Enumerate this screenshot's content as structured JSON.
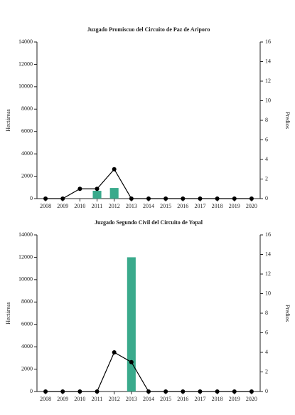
{
  "chart_data": [
    {
      "type": "bar",
      "title": "Juzgado Promiscuo del Circuito de Paz de Ariporo",
      "categories": [
        "2008",
        "2009",
        "2010",
        "2011",
        "2012",
        "2013",
        "2014",
        "2015",
        "2016",
        "2017",
        "2018",
        "2019",
        "2020"
      ],
      "y_label": "Hectáreas",
      "y2_label": "Predios",
      "series": [
        {
          "type": "bar",
          "color": "#3aaa8c",
          "values": [
            0,
            0,
            0,
            700,
            950,
            0,
            0,
            0,
            0,
            0,
            0,
            0,
            0
          ]
        },
        {
          "type": "line",
          "axis": "y2",
          "color": "#000000",
          "values": [
            0,
            0,
            1,
            1,
            3,
            0,
            0,
            0,
            0,
            0,
            0,
            0,
            0
          ]
        }
      ],
      "ylim": [
        0,
        14000
      ],
      "yticks": [
        0,
        2000,
        4000,
        6000,
        8000,
        10000,
        12000,
        14000
      ],
      "y2lim": [
        0,
        16
      ],
      "y2ticks": [
        0,
        2,
        4,
        6,
        8,
        10,
        12,
        14,
        16
      ],
      "grid": false
    },
    {
      "type": "bar",
      "title": "Juzgado Segundo Civil del Circuito de Yopal",
      "categories": [
        "2008",
        "2009",
        "2010",
        "2011",
        "2012",
        "2013",
        "2014",
        "2015",
        "2016",
        "2017",
        "2018",
        "2019",
        "2020"
      ],
      "y_label": "Hectáreas",
      "y2_label": "Predios",
      "series": [
        {
          "type": "bar",
          "color": "#3aaa8c",
          "values": [
            0,
            0,
            0,
            0,
            0,
            12000,
            0,
            0,
            0,
            0,
            0,
            0,
            0
          ]
        },
        {
          "type": "line",
          "axis": "y2",
          "color": "#000000",
          "values": [
            0,
            0,
            0,
            0,
            4,
            3,
            0,
            0,
            0,
            0,
            0,
            0,
            0
          ]
        }
      ],
      "ylim": [
        0,
        14000
      ],
      "yticks": [
        0,
        2000,
        4000,
        6000,
        8000,
        10000,
        12000,
        14000
      ],
      "y2lim": [
        0,
        16
      ],
      "y2ticks": [
        0,
        2,
        4,
        6,
        8,
        10,
        12,
        14,
        16
      ],
      "grid": false
    }
  ]
}
